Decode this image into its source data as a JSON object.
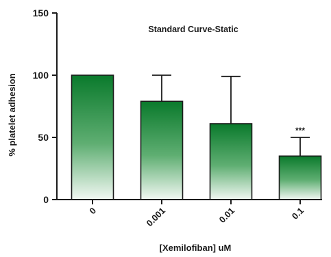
{
  "chart_data": {
    "type": "bar",
    "title": "Standard Curve-Static",
    "xlabel": "[Xemilofiban] uM",
    "ylabel": "% platelet adhesion",
    "categories": [
      "0",
      "0.001",
      "0.01",
      "0.1"
    ],
    "values": [
      100,
      79,
      61,
      35
    ],
    "error_upper": [
      100,
      100,
      99,
      50
    ],
    "ylim": [
      0,
      150
    ],
    "yticks": [
      0,
      50,
      100,
      150
    ],
    "annotations": [
      {
        "category": "0.1",
        "text": "***"
      }
    ],
    "bar_gradient": {
      "top_color": "#0a7a2c",
      "bottom_color": "#f2f8f3"
    },
    "grid": false,
    "legend": "none"
  }
}
